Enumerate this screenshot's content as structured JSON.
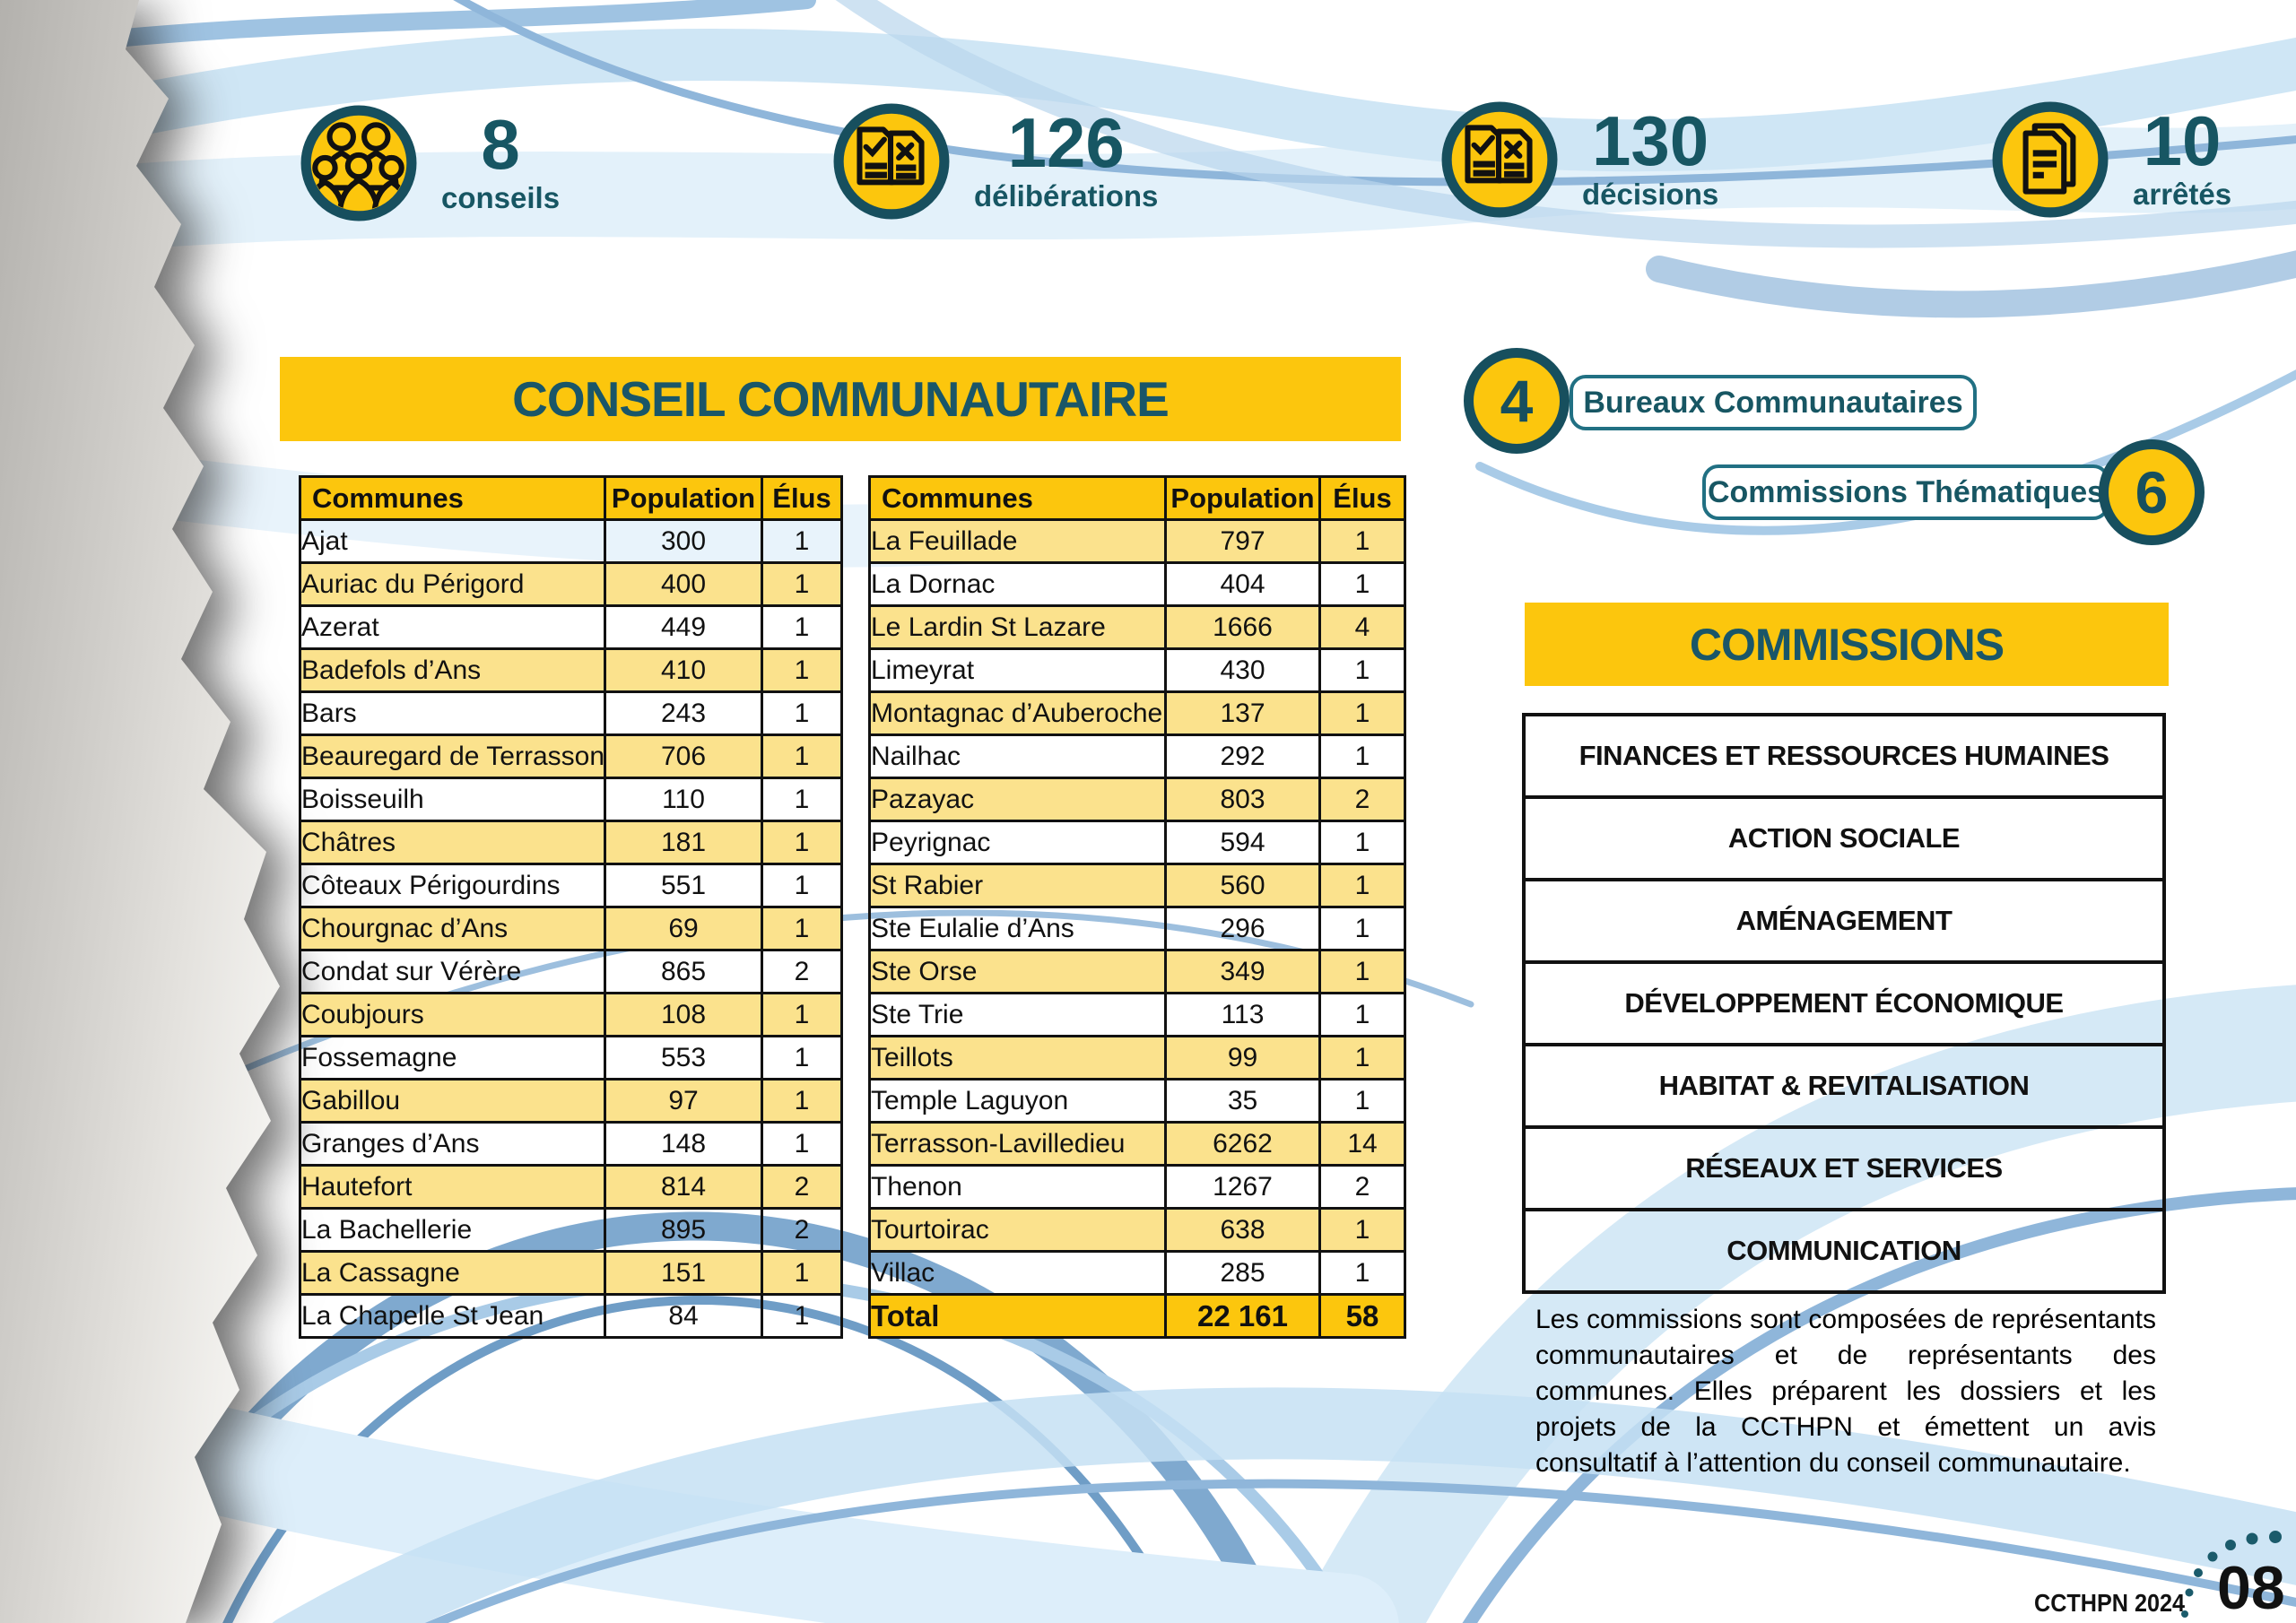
{
  "stats": [
    {
      "icon": "people-group-icon",
      "value": "8",
      "label": "conseils"
    },
    {
      "icon": "documents-check-x-icon",
      "value": "126",
      "label": "délibérations"
    },
    {
      "icon": "documents-check-x-icon",
      "value": "130",
      "label": "décisions"
    },
    {
      "icon": "document-stack-icon",
      "value": "10",
      "label": "arrêtés"
    }
  ],
  "conseil": {
    "title": "CONSEIL COMMUNAUTAIRE",
    "columns": [
      "Communes",
      "Population",
      "Élus"
    ],
    "table_left": [
      [
        "Ajat",
        "300",
        "1"
      ],
      [
        "Auriac du Périgord",
        "400",
        "1"
      ],
      [
        "Azerat",
        "449",
        "1"
      ],
      [
        "Badefols d’Ans",
        "410",
        "1"
      ],
      [
        "Bars",
        "243",
        "1"
      ],
      [
        "Beauregard de Terrasson",
        "706",
        "1"
      ],
      [
        "Boisseuilh",
        "110",
        "1"
      ],
      [
        "Châtres",
        "181",
        "1"
      ],
      [
        "Côteaux Périgourdins",
        "551",
        "1"
      ],
      [
        "Chourgnac d’Ans",
        "69",
        "1"
      ],
      [
        "Condat sur Vérère",
        "865",
        "2"
      ],
      [
        "Coubjours",
        "108",
        "1"
      ],
      [
        "Fossemagne",
        "553",
        "1"
      ],
      [
        "Gabillou",
        "97",
        "1"
      ],
      [
        "Granges d’Ans",
        "148",
        "1"
      ],
      [
        "Hautefort",
        "814",
        "2"
      ],
      [
        "La Bachellerie",
        "895",
        "2"
      ],
      [
        "La Cassagne",
        "151",
        "1"
      ],
      [
        "La Chapelle St Jean",
        "84",
        "1"
      ]
    ],
    "table_right": [
      [
        "La Feuillade",
        "797",
        "1"
      ],
      [
        "La Dornac",
        "404",
        "1"
      ],
      [
        "Le Lardin St Lazare",
        "1666",
        "4"
      ],
      [
        "Limeyrat",
        "430",
        "1"
      ],
      [
        "Montagnac d’Auberoche",
        "137",
        "1"
      ],
      [
        "Nailhac",
        "292",
        "1"
      ],
      [
        "Pazayac",
        "803",
        "2"
      ],
      [
        "Peyrignac",
        "594",
        "1"
      ],
      [
        "St Rabier",
        "560",
        "1"
      ],
      [
        "Ste Eulalie d’Ans",
        "296",
        "1"
      ],
      [
        "Ste Orse",
        "349",
        "1"
      ],
      [
        "Ste Trie",
        "113",
        "1"
      ],
      [
        "Teillots",
        "99",
        "1"
      ],
      [
        "Temple Laguyon",
        "35",
        "1"
      ],
      [
        "Terrasson-Lavilledieu",
        "6262",
        "14"
      ],
      [
        "Thenon",
        "1267",
        "2"
      ],
      [
        "Tourtoirac",
        "638",
        "1"
      ],
      [
        "Villac",
        "285",
        "1"
      ]
    ],
    "total": {
      "label": "Total",
      "population": "22 161",
      "elus": "58"
    }
  },
  "badges": [
    {
      "count": "4",
      "label": "Bureaux Communautaires"
    },
    {
      "count": "6",
      "label": "Commissions Thématiques"
    }
  ],
  "commissions": {
    "title": "COMMISSIONS",
    "items": [
      "FINANCES ET RESSOURCES HUMAINES",
      "ACTION SOCIALE",
      "AMÉNAGEMENT",
      "DÉVELOPPEMENT ÉCONOMIQUE",
      "HABITAT & REVITALISATION",
      "RÉSEAUX ET SERVICES",
      "COMMUNICATION"
    ],
    "description": "Les commissions sont composées de représentants communautaires et de représentants des communes. Elles préparent les dossiers et les projets de la CCTHPN et émettent un avis consultatif à l’attention du conseil communautaire."
  },
  "footer": {
    "brand": "CCTHPN 2024",
    "page_number": "08"
  },
  "colors": {
    "gold": "#fcc60d",
    "light_yellow": "#fbe28d",
    "teal": "#175663",
    "teal_dark": "#174f5e",
    "wave_light": "#d5e9f6",
    "wave_medium": "#8fb6da",
    "wave_steel": "#7fa9cf"
  }
}
